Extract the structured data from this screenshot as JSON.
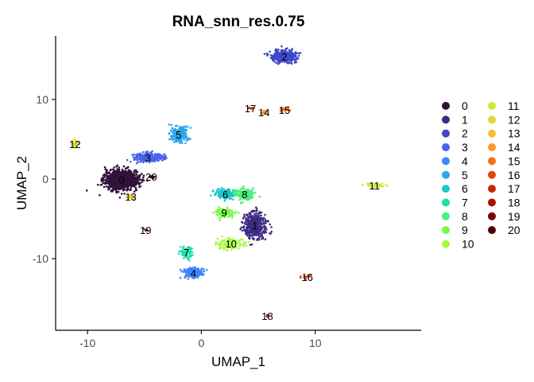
{
  "chart_data": {
    "type": "scatter",
    "title": "RNA_snn_res.0.75",
    "xlabel": "UMAP_1",
    "ylabel": "UMAP_2",
    "xlim": [
      -12.8,
      19.3
    ],
    "ylim": [
      -19,
      18
    ],
    "xticks": [
      {
        "value": -10,
        "label": "-10"
      },
      {
        "value": 0,
        "label": "0"
      },
      {
        "value": 10,
        "label": "10"
      }
    ],
    "yticks": [
      {
        "value": -10,
        "label": "-10"
      },
      {
        "value": 0,
        "label": "0"
      },
      {
        "value": 10,
        "label": "10"
      }
    ],
    "grid": false,
    "legend_position": "right",
    "legend_columns": 2,
    "series": [
      {
        "name": "0",
        "color": "#30123B",
        "label_x": -7.0,
        "label_y": -0.1,
        "spread_x": 1.3,
        "spread_y": 1.0,
        "count": 1200
      },
      {
        "name": "1",
        "color": "#3E2A80",
        "label_x": 4.7,
        "label_y": -5.8,
        "spread_x": 0.9,
        "spread_y": 1.5,
        "count": 450
      },
      {
        "name": "2",
        "color": "#3F49C8",
        "label_x": 7.3,
        "label_y": 15.4,
        "spread_x": 1.0,
        "spread_y": 0.7,
        "count": 350
      },
      {
        "name": "3",
        "color": "#4664E8",
        "label_x": -4.7,
        "label_y": 2.7,
        "spread_x": 1.2,
        "spread_y": 0.5,
        "count": 260
      },
      {
        "name": "4",
        "color": "#3F86F9",
        "label_x": -0.7,
        "label_y": -11.8,
        "spread_x": 0.7,
        "spread_y": 0.6,
        "count": 220
      },
      {
        "name": "5",
        "color": "#28A6EB",
        "label_x": -2.0,
        "label_y": 5.6,
        "spread_x": 0.7,
        "spread_y": 1.1,
        "count": 180
      },
      {
        "name": "6",
        "color": "#1CC6CB",
        "label_x": 2.1,
        "label_y": -1.9,
        "spread_x": 0.9,
        "spread_y": 0.5,
        "count": 170
      },
      {
        "name": "7",
        "color": "#1BE0A8",
        "label_x": -1.3,
        "label_y": -9.2,
        "spread_x": 0.4,
        "spread_y": 0.7,
        "count": 90
      },
      {
        "name": "8",
        "color": "#4AF079",
        "label_x": 3.8,
        "label_y": -1.9,
        "spread_x": 0.7,
        "spread_y": 0.6,
        "count": 150
      },
      {
        "name": "9",
        "color": "#78FA4D",
        "label_x": 2.0,
        "label_y": -4.2,
        "spread_x": 0.8,
        "spread_y": 0.5,
        "count": 120
      },
      {
        "name": "10",
        "color": "#A4FC3C",
        "label_x": 2.6,
        "label_y": -8.1,
        "spread_x": 1.3,
        "spread_y": 0.7,
        "count": 120
      },
      {
        "name": "11",
        "color": "#C5EF33",
        "label_x": 15.2,
        "label_y": -0.8,
        "spread_x": 0.9,
        "spread_y": 0.3,
        "count": 45
      },
      {
        "name": "12",
        "color": "#E0DA37",
        "label_x": -11.1,
        "label_y": 4.4,
        "spread_x": 0.3,
        "spread_y": 0.5,
        "count": 35
      },
      {
        "name": "13",
        "color": "#F5BD39",
        "label_x": -6.2,
        "label_y": -2.2,
        "spread_x": 0.3,
        "spread_y": 0.2,
        "count": 35
      },
      {
        "name": "14",
        "color": "#FD992C",
        "label_x": 5.5,
        "label_y": 8.4,
        "spread_x": 0.3,
        "spread_y": 0.2,
        "count": 18
      },
      {
        "name": "15",
        "color": "#F86F1A",
        "label_x": 7.3,
        "label_y": 8.7,
        "spread_x": 0.4,
        "spread_y": 0.2,
        "count": 20
      },
      {
        "name": "16",
        "color": "#E3440A",
        "label_x": 9.3,
        "label_y": -12.3,
        "spread_x": 0.5,
        "spread_y": 0.2,
        "count": 10
      },
      {
        "name": "17",
        "color": "#C82803",
        "label_x": 4.3,
        "label_y": 8.9,
        "spread_x": 0.3,
        "spread_y": 0.1,
        "count": 10
      },
      {
        "name": "18",
        "color": "#A31401",
        "label_x": 5.8,
        "label_y": -17.2,
        "spread_x": 0.1,
        "spread_y": 0.1,
        "count": 4
      },
      {
        "name": "19",
        "color": "#7A0403",
        "label_x": -4.9,
        "label_y": -6.4,
        "spread_x": 0.15,
        "spread_y": 0.15,
        "count": 4
      },
      {
        "name": "20",
        "color": "#4E0302",
        "label_x": -4.4,
        "label_y": 0.3,
        "spread_x": 0.25,
        "spread_y": 0.1,
        "count": 10
      }
    ]
  }
}
